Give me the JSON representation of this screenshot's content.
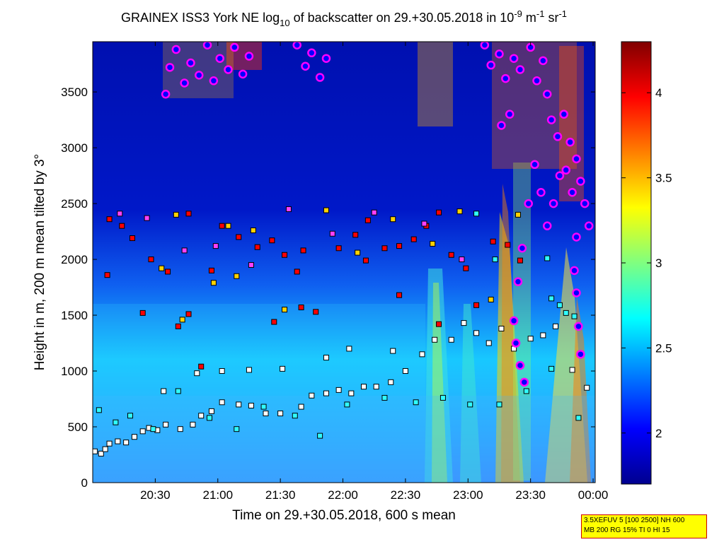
{
  "chart_data": {
    "type": "heatmap",
    "title": {
      "prefix": "GRAINEX ISS3 York NE log",
      "sub": "10",
      "middle": " of backscatter on 29.+30.05.2018 in 10",
      "exp1": "-9",
      "mid2": " m",
      "exp2": "-1",
      "mid3": " sr",
      "exp3": "-1"
    },
    "xlabel": "Time on 29.+30.05.2018, 600 s mean",
    "ylabel": "Height in m, 200 m mean tilted by 3°",
    "x_ticks": [
      "20:30",
      "21:00",
      "21:30",
      "22:00",
      "22:30",
      "23:00",
      "23:30",
      "00:00"
    ],
    "x_tick_minutes": [
      1230,
      1260,
      1290,
      1320,
      1350,
      1380,
      1410,
      1440
    ],
    "xlim_minutes": [
      1200,
      1441
    ],
    "y_ticks": [
      "0",
      "500",
      "1000",
      "1500",
      "2000",
      "2500",
      "3000",
      "3500"
    ],
    "y_tick_values": [
      0,
      500,
      1000,
      1500,
      2000,
      2500,
      3000,
      3500
    ],
    "ylim": [
      0,
      3950
    ],
    "colorbar": {
      "ticks": [
        "2",
        "2.5",
        "3",
        "3.5",
        "4"
      ],
      "tick_values": [
        2,
        2.5,
        3,
        3.5,
        4
      ],
      "range": [
        1.7,
        4.3
      ],
      "colormap": "jet"
    },
    "layers": [
      {
        "marker": "square",
        "fill": "#ffffff",
        "points": [
          [
            1201,
            280
          ],
          [
            1204,
            260
          ],
          [
            1206,
            300
          ],
          [
            1208,
            350
          ],
          [
            1212,
            370
          ],
          [
            1216,
            360
          ],
          [
            1220,
            410
          ],
          [
            1224,
            460
          ],
          [
            1227,
            490
          ],
          [
            1231,
            470
          ],
          [
            1235,
            520
          ],
          [
            1242,
            480
          ],
          [
            1248,
            520
          ],
          [
            1252,
            600
          ],
          [
            1257,
            640
          ],
          [
            1262,
            720
          ],
          [
            1270,
            700
          ],
          [
            1276,
            690
          ],
          [
            1283,
            620
          ],
          [
            1290,
            620
          ],
          [
            1300,
            680
          ],
          [
            1305,
            780
          ],
          [
            1312,
            800
          ],
          [
            1318,
            830
          ],
          [
            1324,
            800
          ],
          [
            1330,
            860
          ],
          [
            1336,
            860
          ],
          [
            1343,
            900
          ],
          [
            1350,
            1000
          ],
          [
            1358,
            1150
          ],
          [
            1364,
            1280
          ],
          [
            1372,
            1280
          ],
          [
            1378,
            1430
          ],
          [
            1384,
            1340
          ],
          [
            1390,
            1250
          ],
          [
            1396,
            1380
          ],
          [
            1402,
            1200
          ],
          [
            1410,
            1290
          ],
          [
            1416,
            1320
          ],
          [
            1422,
            1400
          ],
          [
            1430,
            1010
          ],
          [
            1437,
            850
          ],
          [
            1234,
            820
          ],
          [
            1250,
            980
          ],
          [
            1262,
            1000
          ],
          [
            1275,
            1010
          ],
          [
            1291,
            1020
          ],
          [
            1312,
            1120
          ],
          [
            1323,
            1200
          ],
          [
            1344,
            1180
          ]
        ]
      },
      {
        "marker": "square",
        "fill": "#ff0000",
        "points": [
          [
            1208,
            2360
          ],
          [
            1214,
            2300
          ],
          [
            1219,
            2190
          ],
          [
            1228,
            2000
          ],
          [
            1236,
            1890
          ],
          [
            1241,
            1400
          ],
          [
            1246,
            1510
          ],
          [
            1252,
            1040
          ],
          [
            1262,
            2300
          ],
          [
            1270,
            2200
          ],
          [
            1279,
            2110
          ],
          [
            1286,
            2170
          ],
          [
            1292,
            2040
          ],
          [
            1300,
            1570
          ],
          [
            1307,
            1530
          ],
          [
            1318,
            2100
          ],
          [
            1326,
            2220
          ],
          [
            1332,
            2350
          ],
          [
            1340,
            2100
          ],
          [
            1347,
            2120
          ],
          [
            1354,
            2180
          ],
          [
            1360,
            2300
          ],
          [
            1366,
            2420
          ],
          [
            1372,
            2040
          ],
          [
            1379,
            1920
          ],
          [
            1384,
            1590
          ],
          [
            1392,
            2160
          ],
          [
            1399,
            2130
          ],
          [
            1405,
            1990
          ],
          [
            1207,
            1860
          ],
          [
            1224,
            1520
          ],
          [
            1257,
            1900
          ],
          [
            1298,
            1890
          ],
          [
            1331,
            1990
          ],
          [
            1347,
            1680
          ],
          [
            1366,
            1420
          ],
          [
            1287,
            1440
          ],
          [
            1246,
            2410
          ],
          [
            1301,
            2080
          ]
        ]
      },
      {
        "marker": "square",
        "fill": "#ffd200",
        "points": [
          [
            1233,
            1920
          ],
          [
            1243,
            1460
          ],
          [
            1258,
            1790
          ],
          [
            1265,
            2300
          ],
          [
            1277,
            2260
          ],
          [
            1292,
            1550
          ],
          [
            1312,
            2440
          ],
          [
            1327,
            2060
          ],
          [
            1344,
            2360
          ],
          [
            1363,
            2140
          ],
          [
            1376,
            2430
          ],
          [
            1391,
            1640
          ],
          [
            1404,
            2400
          ],
          [
            1240,
            2400
          ],
          [
            1269,
            1850
          ]
        ]
      },
      {
        "marker": "square",
        "fill": "#ff40ff",
        "points": [
          [
            1213,
            2410
          ],
          [
            1226,
            2370
          ],
          [
            1244,
            2080
          ],
          [
            1259,
            2120
          ],
          [
            1276,
            1950
          ],
          [
            1294,
            2450
          ],
          [
            1315,
            2230
          ],
          [
            1335,
            2420
          ],
          [
            1359,
            2320
          ],
          [
            1377,
            2000
          ]
        ]
      },
      {
        "marker": "square",
        "fill": "#30ffff",
        "points": [
          [
            1203,
            650
          ],
          [
            1211,
            540
          ],
          [
            1218,
            600
          ],
          [
            1229,
            480
          ],
          [
            1241,
            820
          ],
          [
            1256,
            580
          ],
          [
            1269,
            480
          ],
          [
            1282,
            680
          ],
          [
            1297,
            600
          ],
          [
            1309,
            420
          ],
          [
            1322,
            700
          ],
          [
            1340,
            760
          ],
          [
            1355,
            720
          ],
          [
            1368,
            760
          ],
          [
            1381,
            700
          ],
          [
            1395,
            700
          ],
          [
            1408,
            820
          ],
          [
            1420,
            1020
          ],
          [
            1433,
            580
          ],
          [
            1384,
            2410
          ],
          [
            1393,
            2000
          ],
          [
            1418,
            2010
          ],
          [
            1420,
            1650
          ],
          [
            1424,
            1590
          ],
          [
            1427,
            1520
          ],
          [
            1431,
            1490
          ]
        ]
      },
      {
        "marker": "circle",
        "fill": "#0000ff",
        "stroke": "#ff00ff",
        "points": [
          [
            1235,
            3480
          ],
          [
            1237,
            3720
          ],
          [
            1240,
            3880
          ],
          [
            1244,
            3580
          ],
          [
            1247,
            3760
          ],
          [
            1251,
            3650
          ],
          [
            1255,
            3920
          ],
          [
            1258,
            3600
          ],
          [
            1261,
            3800
          ],
          [
            1265,
            3700
          ],
          [
            1268,
            3900
          ],
          [
            1272,
            3660
          ],
          [
            1275,
            3820
          ],
          [
            1298,
            3920
          ],
          [
            1302,
            3730
          ],
          [
            1305,
            3850
          ],
          [
            1309,
            3630
          ],
          [
            1312,
            3800
          ],
          [
            1388,
            3920
          ],
          [
            1391,
            3740
          ],
          [
            1395,
            3840
          ],
          [
            1398,
            3620
          ],
          [
            1402,
            3800
          ],
          [
            1405,
            3700
          ],
          [
            1410,
            3900
          ],
          [
            1413,
            3600
          ],
          [
            1416,
            3780
          ],
          [
            1418,
            3480
          ],
          [
            1420,
            3250
          ],
          [
            1423,
            3100
          ],
          [
            1426,
            3300
          ],
          [
            1429,
            3050
          ],
          [
            1432,
            2900
          ],
          [
            1434,
            2700
          ],
          [
            1436,
            2500
          ],
          [
            1438,
            2300
          ],
          [
            1430,
            2600
          ],
          [
            1427,
            2800
          ],
          [
            1424,
            2750
          ],
          [
            1421,
            2500
          ],
          [
            1418,
            2300
          ],
          [
            1415,
            2600
          ],
          [
            1412,
            2850
          ],
          [
            1409,
            2500
          ],
          [
            1406,
            2100
          ],
          [
            1404,
            1800
          ],
          [
            1402,
            1450
          ],
          [
            1403,
            1250
          ],
          [
            1405,
            1050
          ],
          [
            1407,
            900
          ],
          [
            1432,
            2200
          ],
          [
            1431,
            1900
          ],
          [
            1432,
            1700
          ],
          [
            1433,
            1400
          ],
          [
            1434,
            1150
          ],
          [
            1400,
            3300
          ],
          [
            1396,
            3200
          ]
        ]
      }
    ]
  },
  "colors": {
    "colormap_stops": [
      "#00008f",
      "#0000ff",
      "#00ffff",
      "#ffff00",
      "#ff0000",
      "#800000"
    ]
  },
  "info_box": {
    "line1": "3.5XEFUV 5 [100 2500] NH 600",
    "line2": "MB 200 RG 15% TI 0 HI 15"
  }
}
